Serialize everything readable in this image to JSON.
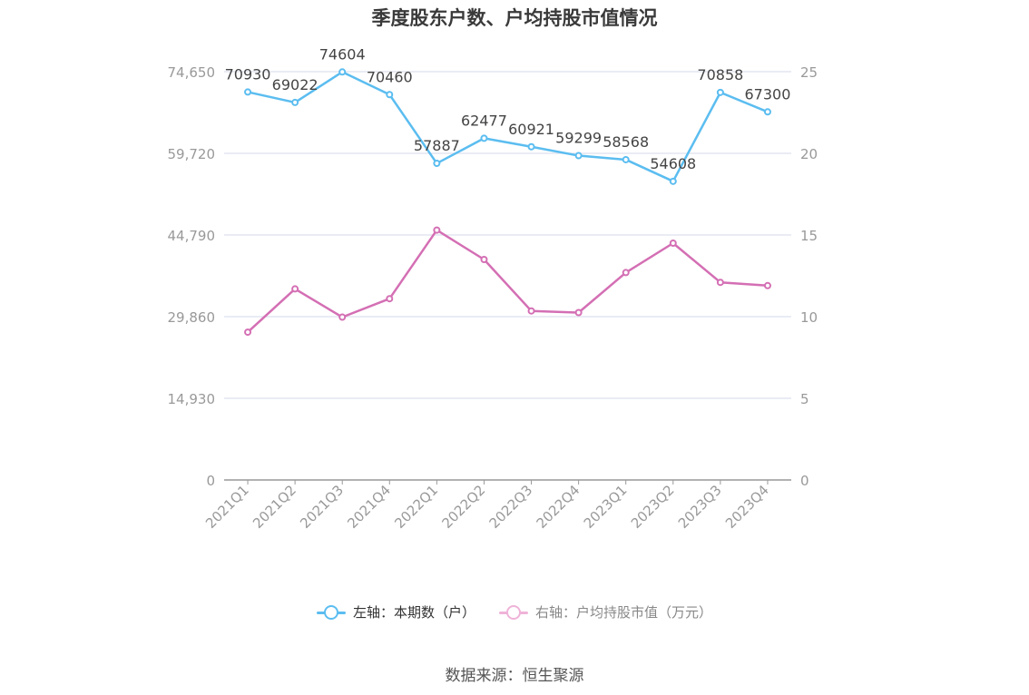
{
  "title": "季度股东户数、户均持股市值情况",
  "source": "数据来源：恒生聚源",
  "colors": {
    "left_series": "#5bbdf0",
    "right_series": "#d46fb4",
    "grid": "#e4e6f0",
    "axis": "#999999",
    "tick_text": "#999999",
    "label_text": "#444444"
  },
  "chart_data": {
    "type": "line",
    "categories": [
      "2021Q1",
      "2021Q2",
      "2021Q3",
      "2021Q4",
      "2022Q1",
      "2022Q2",
      "2022Q3",
      "2022Q4",
      "2023Q1",
      "2023Q2",
      "2023Q3",
      "2023Q4"
    ],
    "left_axis": {
      "min": 0,
      "max": 74650,
      "ticks": [
        0,
        14930,
        29860,
        44790,
        59720,
        74650
      ],
      "tick_labels": [
        "0",
        "14,930",
        "29,860",
        "44,790",
        "59,720",
        "74,650"
      ]
    },
    "right_axis": {
      "min": 0,
      "max": 25,
      "ticks": [
        0,
        5,
        10,
        15,
        20,
        25
      ],
      "tick_labels": [
        "0",
        "5",
        "10",
        "15",
        "20",
        "25"
      ]
    },
    "series": [
      {
        "name": "左轴：本期数（户）",
        "axis": "left",
        "values": [
          70930,
          69022,
          74604,
          70460,
          57887,
          62477,
          60921,
          59299,
          58568,
          54608,
          70858,
          67300
        ],
        "labels": [
          "70930",
          "69022",
          "74604",
          "70460",
          "57887",
          "62477",
          "60921",
          "59299",
          "58568",
          "54608",
          "70858",
          "67300"
        ]
      },
      {
        "name": "右轴：户均持股市值（万元）",
        "axis": "right",
        "values": [
          9.05,
          11.7,
          9.97,
          11.1,
          15.3,
          13.5,
          10.35,
          10.25,
          12.7,
          14.5,
          12.1,
          11.9
        ]
      }
    ],
    "grid": true,
    "legend_position": "bottom"
  }
}
